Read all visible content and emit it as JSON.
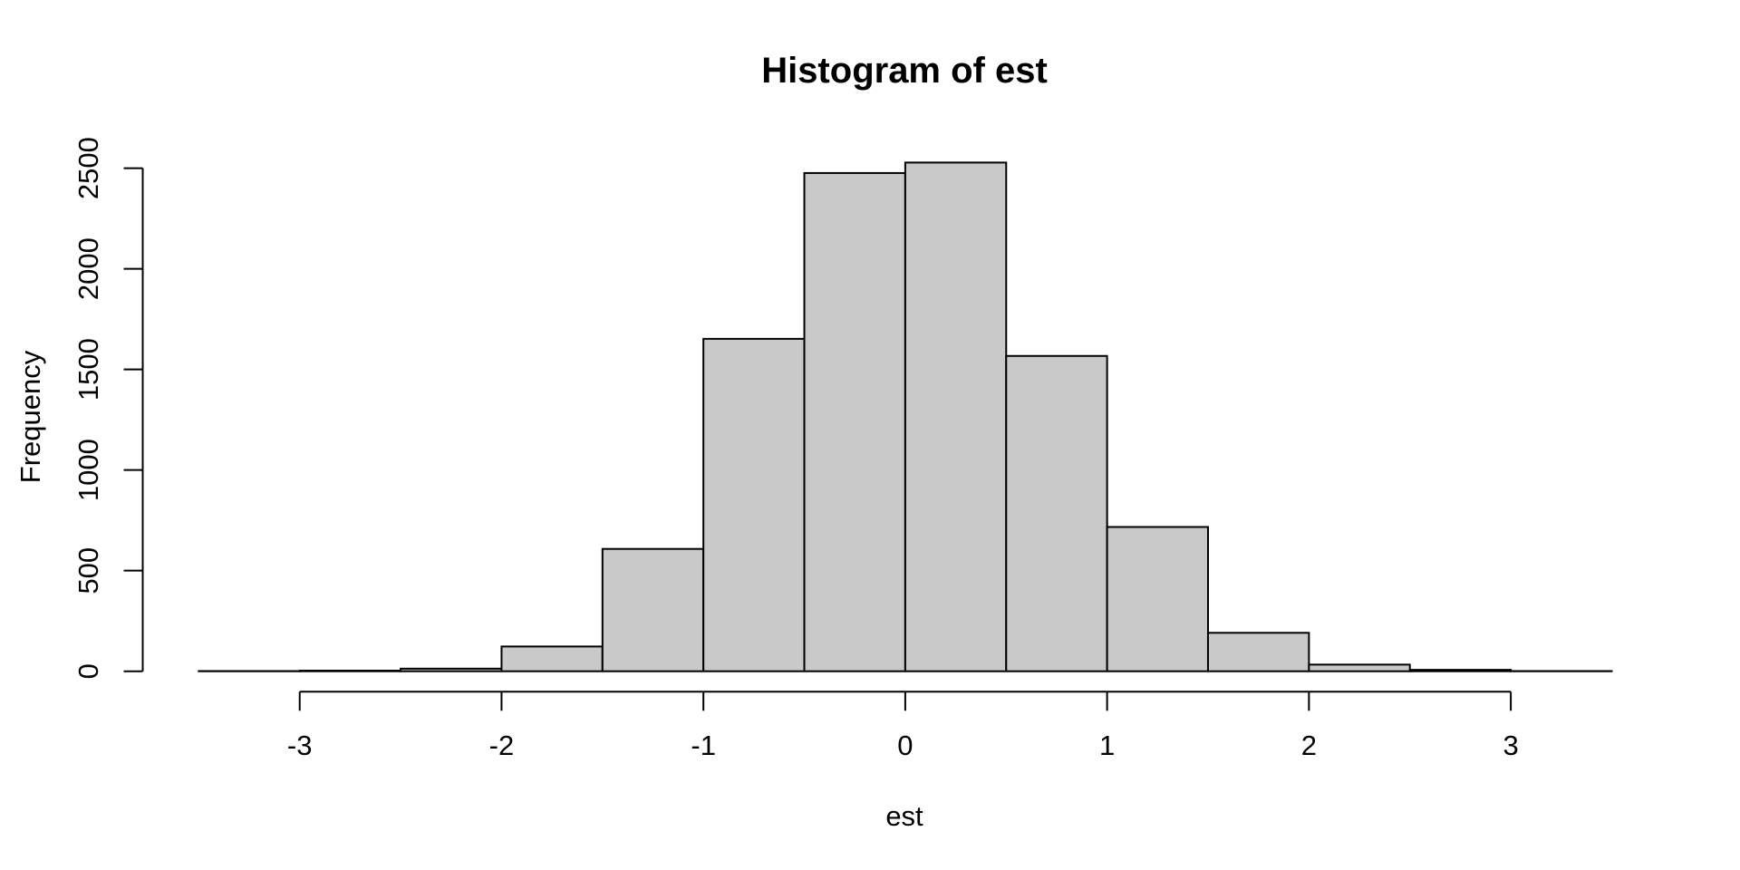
{
  "chart_data": {
    "type": "bar",
    "subtype": "histogram",
    "title": "Histogram of est",
    "xlabel": "est",
    "ylabel": "Frequency",
    "bin_start": -3.5,
    "bin_width": 0.5,
    "bin_edges": [
      -3.5,
      -3.0,
      -2.5,
      -2.0,
      -1.5,
      -1.0,
      -0.5,
      0.0,
      0.5,
      1.0,
      1.5,
      2.0,
      2.5,
      3.0,
      3.5
    ],
    "counts": [
      1,
      3,
      13,
      123,
      608,
      1652,
      2476,
      2528,
      1567,
      717,
      191,
      33,
      7,
      1
    ],
    "x_ticks": [
      -3,
      -2,
      -1,
      0,
      1,
      2,
      3
    ],
    "y_ticks": [
      0,
      500,
      1000,
      1500,
      2000,
      2500
    ],
    "xlim": [
      -3.78,
      3.78
    ],
    "ylim": [
      0,
      2540
    ],
    "grid": false,
    "legend": "none",
    "colors": {
      "bar_fill": "#C9C9C9",
      "bar_stroke": "#000000",
      "axis": "#000000",
      "text": "#000000",
      "background": "#FFFFFF"
    }
  }
}
